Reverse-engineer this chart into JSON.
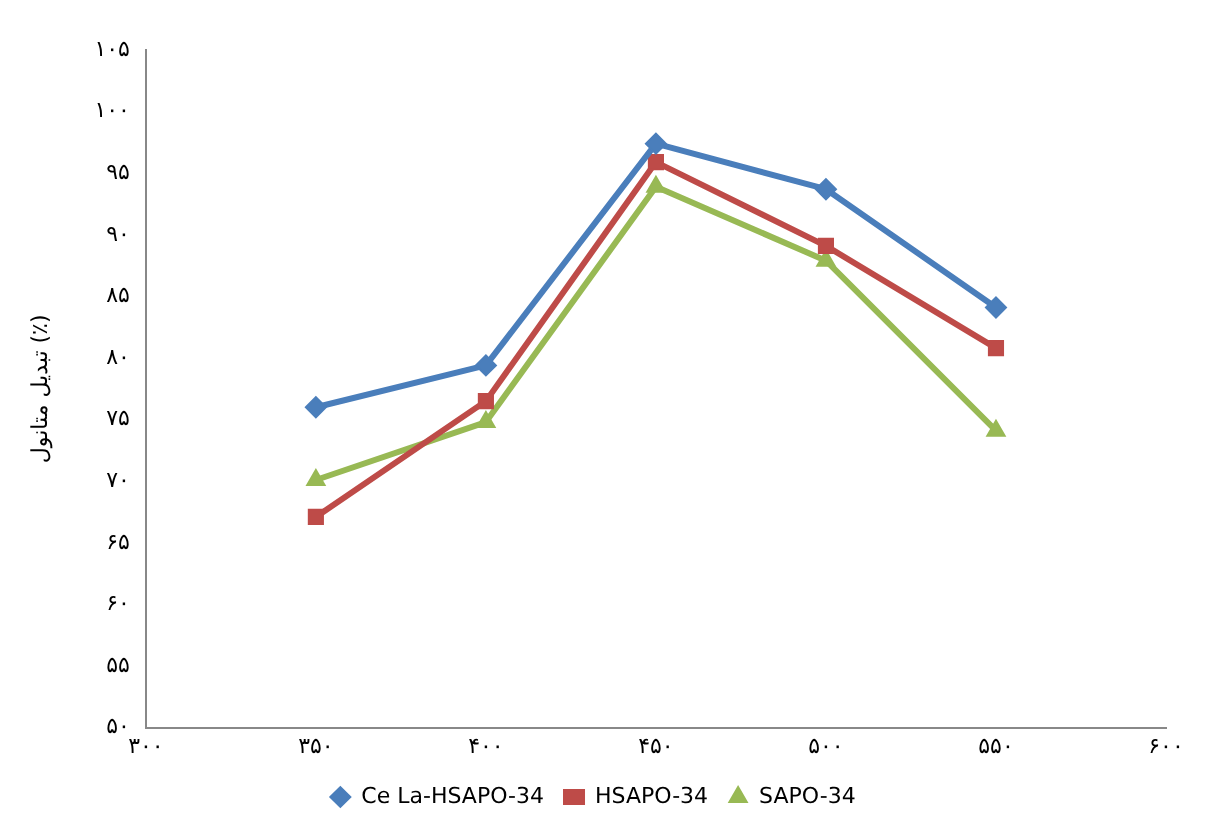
{
  "chart_data": {
    "type": "line",
    "ylabel": "تبدیل متانول (٪)",
    "x": [
      350,
      400,
      450,
      500,
      550
    ],
    "series": [
      {
        "name": "Ce La-HSAPO-34",
        "color": "#4a7ebb",
        "marker": "diamond",
        "values": [
          76.0,
          79.4,
          97.4,
          93.7,
          84.1
        ]
      },
      {
        "name": "HSAPO-34",
        "color": "#be4b48",
        "marker": "square",
        "values": [
          67.1,
          76.5,
          95.9,
          89.1,
          80.8
        ]
      },
      {
        "name": "SAPO-34",
        "color": "#98b954",
        "marker": "triangle",
        "values": [
          70.1,
          74.8,
          93.9,
          87.9,
          74.1
        ]
      }
    ],
    "xlim": [
      300,
      600
    ],
    "xticks": [
      {
        "value": 300,
        "label": "۳۰۰"
      },
      {
        "value": 350,
        "label": "۳۵۰"
      },
      {
        "value": 400,
        "label": "۴۰۰"
      },
      {
        "value": 450,
        "label": "۴۵۰"
      },
      {
        "value": 500,
        "label": "۵۰۰"
      },
      {
        "value": 550,
        "label": "۵۵۰"
      },
      {
        "value": 600,
        "label": "۶۰۰"
      }
    ],
    "ylim": [
      50,
      105
    ],
    "yticks": [
      {
        "value": 50,
        "label": "۵۰"
      },
      {
        "value": 55,
        "label": "۵۵"
      },
      {
        "value": 60,
        "label": "۶۰"
      },
      {
        "value": 65,
        "label": "۶۵"
      },
      {
        "value": 70,
        "label": "۷۰"
      },
      {
        "value": 75,
        "label": "۷۵"
      },
      {
        "value": 80,
        "label": "۸۰"
      },
      {
        "value": 85,
        "label": "۸۵"
      },
      {
        "value": 90,
        "label": "۹۰"
      },
      {
        "value": 95,
        "label": "۹۵"
      },
      {
        "value": 100,
        "label": "۱۰۰"
      },
      {
        "value": 105,
        "label": "۱۰۵"
      }
    ],
    "grid": false,
    "legend": "bottom",
    "line_style": "solid"
  }
}
